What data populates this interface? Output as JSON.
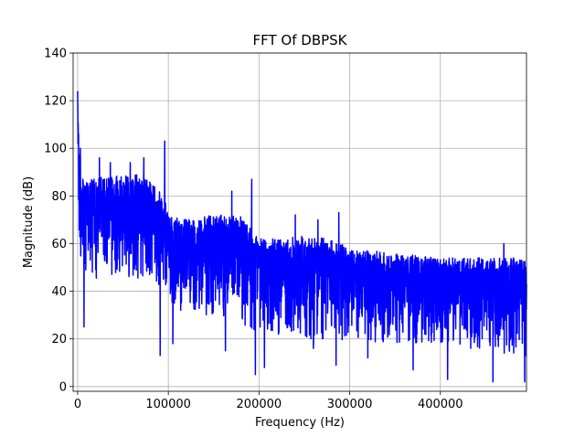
{
  "chart_data": {
    "type": "line",
    "title": "FFT Of DBPSK",
    "xlabel": "Frequency (Hz)",
    "ylabel": "Magnitude (dB)",
    "xlim": [
      -5000,
      495000
    ],
    "ylim": [
      -2,
      140
    ],
    "xticks": [
      0,
      100000,
      200000,
      300000,
      400000
    ],
    "yticks": [
      0,
      20,
      40,
      60,
      80,
      100,
      120,
      140
    ],
    "xtick_labels": [
      "0",
      "100000",
      "200000",
      "300000",
      "400000"
    ],
    "ytick_labels": [
      "0",
      "20",
      "40",
      "60",
      "80",
      "100",
      "120",
      "140"
    ],
    "grid": true,
    "series": [
      {
        "color": "#0000ff",
        "envelope": {
          "x": [
            0,
            2000,
            5000,
            10000,
            20000,
            40000,
            60000,
            80000,
            95000,
            100000,
            120000,
            150000,
            180000,
            200000,
            220000,
            250000,
            280000,
            300000,
            350000,
            400000,
            450000,
            495000
          ],
          "upper": [
            124,
            95,
            88,
            87,
            88,
            88,
            90,
            86,
            80,
            72,
            70,
            72,
            72,
            62,
            62,
            64,
            62,
            58,
            56,
            54,
            54,
            54
          ],
          "lower": [
            62,
            50,
            45,
            40,
            45,
            46,
            46,
            44,
            40,
            36,
            30,
            30,
            25,
            22,
            22,
            20,
            20,
            18,
            18,
            18,
            15,
            12
          ]
        },
        "peaks": [
          {
            "x": 0,
            "y": 124
          },
          {
            "x": 1000,
            "y": 106
          },
          {
            "x": 3000,
            "y": 100
          },
          {
            "x": 24000,
            "y": 96
          },
          {
            "x": 36000,
            "y": 94
          },
          {
            "x": 58000,
            "y": 94
          },
          {
            "x": 73000,
            "y": 96
          },
          {
            "x": 96000,
            "y": 103
          },
          {
            "x": 170000,
            "y": 82
          },
          {
            "x": 192000,
            "y": 87
          },
          {
            "x": 240000,
            "y": 72
          },
          {
            "x": 265000,
            "y": 70
          },
          {
            "x": 288000,
            "y": 73
          },
          {
            "x": 470000,
            "y": 60
          }
        ],
        "dips": [
          {
            "x": 7000,
            "y": 25
          },
          {
            "x": 91000,
            "y": 13
          },
          {
            "x": 105000,
            "y": 18
          },
          {
            "x": 163000,
            "y": 15
          },
          {
            "x": 196000,
            "y": 5
          },
          {
            "x": 206000,
            "y": 8
          },
          {
            "x": 260000,
            "y": 16
          },
          {
            "x": 285000,
            "y": 9
          },
          {
            "x": 320000,
            "y": 12
          },
          {
            "x": 370000,
            "y": 7
          },
          {
            "x": 408000,
            "y": 3
          },
          {
            "x": 458000,
            "y": 2
          },
          {
            "x": 493000,
            "y": 2
          }
        ]
      }
    ]
  }
}
